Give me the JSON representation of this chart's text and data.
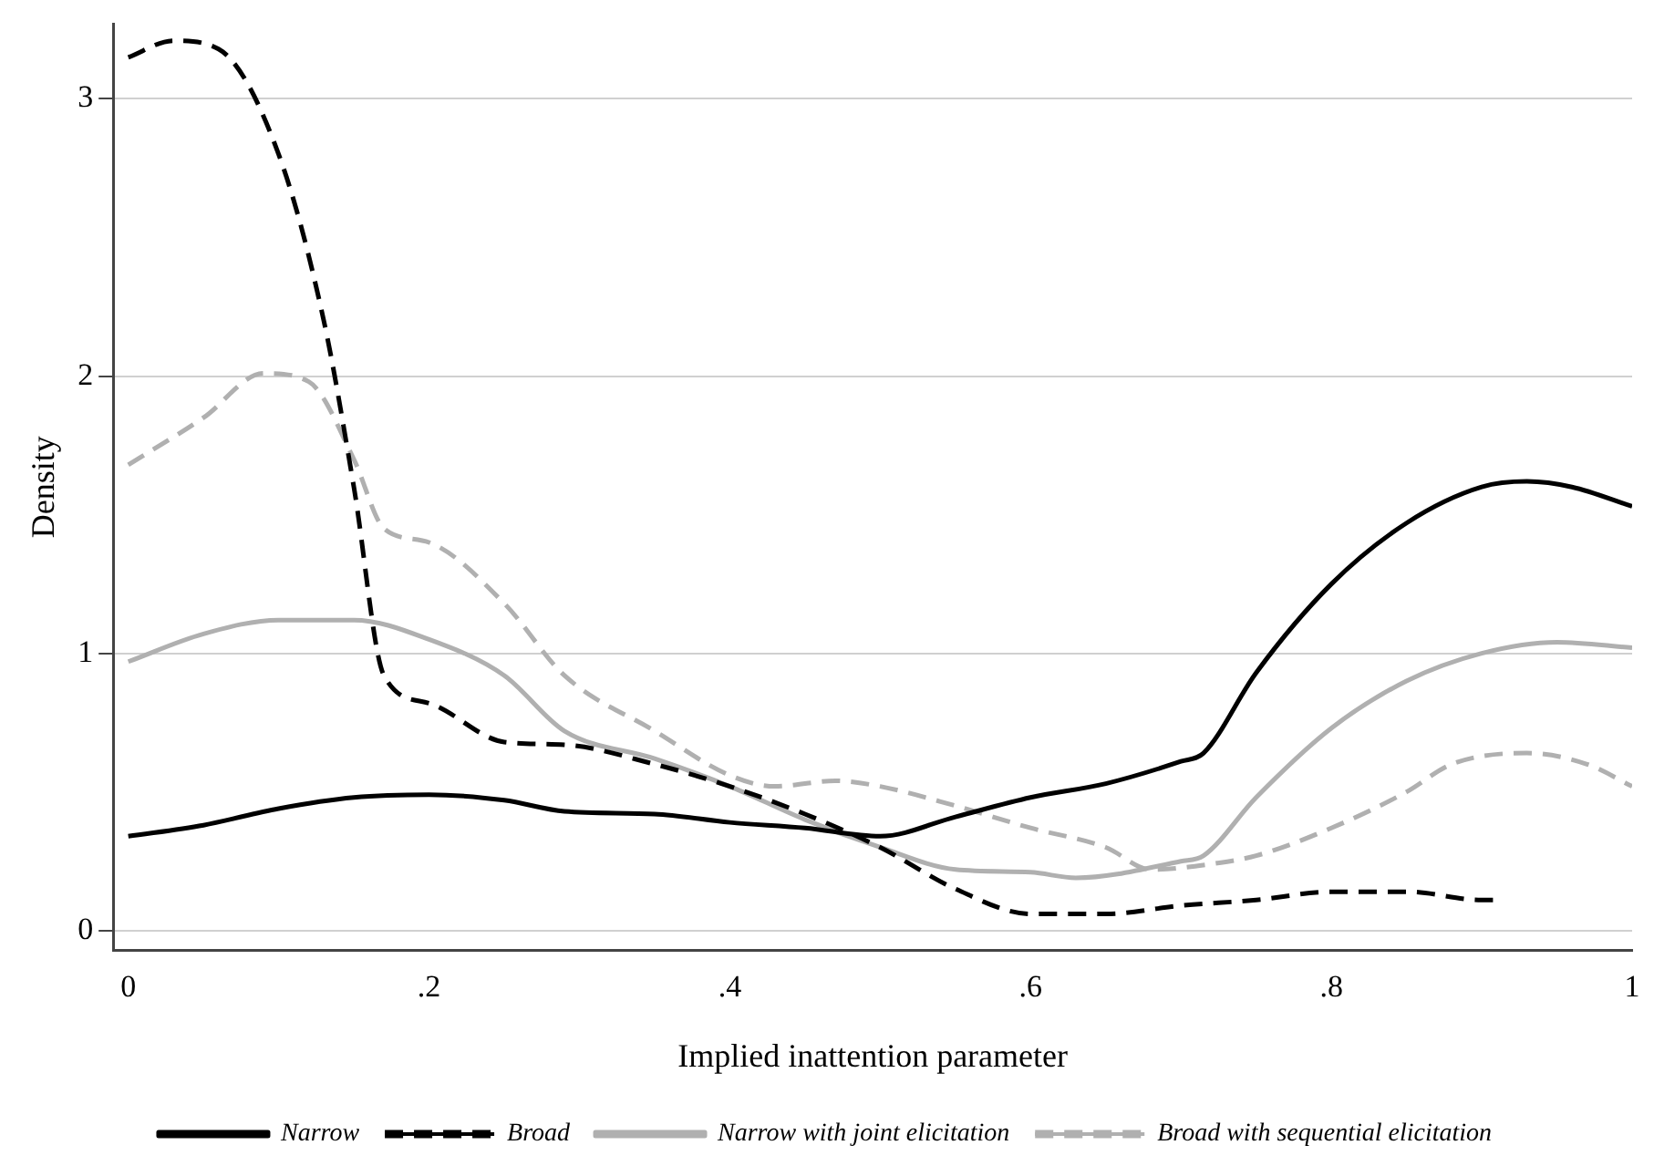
{
  "chart_data": {
    "type": "line",
    "xlabel": "Implied inattention parameter",
    "ylabel": "Density",
    "xlim": [
      -0.01,
      1.0
    ],
    "xticks": [
      {
        "value": 0,
        "label": "0"
      },
      {
        "value": 0.2,
        "label": ".2"
      },
      {
        "value": 0.4,
        "label": ".4"
      },
      {
        "value": 0.6,
        "label": ".6"
      },
      {
        "value": 0.8,
        "label": ".8"
      },
      {
        "value": 1,
        "label": "1"
      }
    ],
    "ylim": [
      -0.07,
      3.27
    ],
    "yticks": [
      0,
      1,
      2,
      3
    ],
    "grid": "y",
    "legend": "bottom",
    "marker": "none",
    "series": [
      {
        "name": "Narrow",
        "color": "#000000",
        "line_style": "solid",
        "x": [
          0,
          0.05,
          0.1,
          0.15,
          0.2,
          0.25,
          0.29,
          0.35,
          0.4,
          0.45,
          0.5,
          0.55,
          0.6,
          0.65,
          0.7,
          0.715,
          0.75,
          0.8,
          0.85,
          0.9,
          0.93,
          0.96,
          1.0
        ],
        "values": [
          0.34,
          0.38,
          0.44,
          0.48,
          0.49,
          0.47,
          0.43,
          0.42,
          0.39,
          0.37,
          0.34,
          0.41,
          0.48,
          0.53,
          0.61,
          0.64,
          0.93,
          1.25,
          1.47,
          1.6,
          1.62,
          1.6,
          1.53
        ]
      },
      {
        "name": "Broad",
        "color": "#000000",
        "line_style": "dashed",
        "x": [
          0,
          0.03,
          0.06,
          0.1,
          0.13,
          0.15,
          0.17,
          0.2,
          0.25,
          0.29,
          0.35,
          0.4,
          0.45,
          0.5,
          0.55,
          0.6,
          0.65,
          0.7,
          0.75,
          0.8,
          0.85,
          0.9,
          0.91
        ],
        "values": [
          3.15,
          3.21,
          3.18,
          2.8,
          2.2,
          1.6,
          0.92,
          0.82,
          0.68,
          0.67,
          0.6,
          0.52,
          0.42,
          0.3,
          0.15,
          0.06,
          0.06,
          0.09,
          0.11,
          0.14,
          0.14,
          0.11,
          0.11
        ]
      },
      {
        "name": "Narrow with joint elicitation",
        "color": "#b0b0b0",
        "line_style": "solid",
        "x": [
          0,
          0.05,
          0.1,
          0.15,
          0.2,
          0.25,
          0.29,
          0.35,
          0.4,
          0.45,
          0.5,
          0.55,
          0.6,
          0.63,
          0.7,
          0.715,
          0.75,
          0.8,
          0.85,
          0.9,
          0.95,
          1.0
        ],
        "values": [
          0.97,
          1.07,
          1.12,
          1.12,
          1.05,
          0.92,
          0.72,
          0.62,
          0.52,
          0.4,
          0.3,
          0.22,
          0.21,
          0.19,
          0.25,
          0.27,
          0.48,
          0.73,
          0.9,
          1.0,
          1.04,
          1.02
        ]
      },
      {
        "name": "Broad with sequential elicitation",
        "color": "#b0b0b0",
        "line_style": "dashed",
        "x": [
          0,
          0.05,
          0.09,
          0.12,
          0.15,
          0.17,
          0.2,
          0.25,
          0.29,
          0.35,
          0.4,
          0.43,
          0.47,
          0.5,
          0.55,
          0.6,
          0.65,
          0.68,
          0.72,
          0.75,
          0.8,
          0.85,
          0.88,
          0.93,
          0.97,
          1.0
        ],
        "values": [
          1.68,
          1.85,
          2.01,
          1.98,
          1.7,
          1.45,
          1.4,
          1.18,
          0.92,
          0.72,
          0.56,
          0.52,
          0.54,
          0.52,
          0.45,
          0.37,
          0.3,
          0.22,
          0.24,
          0.27,
          0.37,
          0.5,
          0.6,
          0.64,
          0.6,
          0.52
        ]
      }
    ]
  }
}
